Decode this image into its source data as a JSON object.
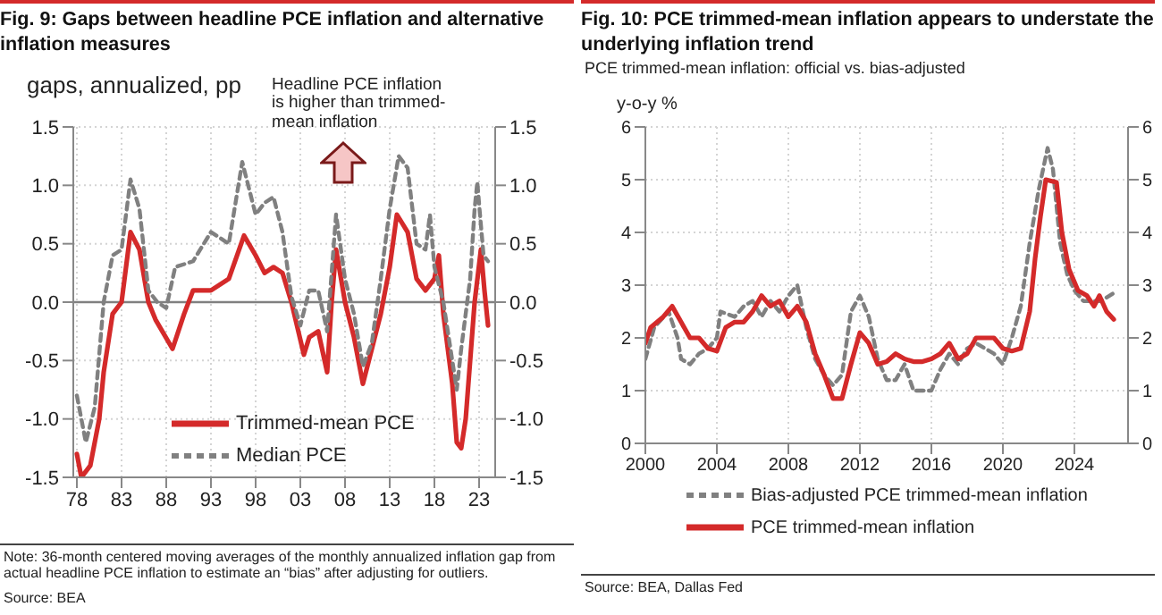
{
  "chart_data": [
    {
      "type": "line",
      "title": "Fig. 9: Gaps between headline PCE inflation and alternative inflation measures",
      "ylabel": "gaps, annualized, pp",
      "annotations": [
        "Headline PCE inflation is higher than trimmed-mean inflation",
        "Note: 36-month centered moving averages of the monthly annualized inflation gap from actual headline PCE inflation to estimate an “bias” after adjusting for outliers.",
        "Source: BEA"
      ],
      "xlim": [
        1977.6,
        2024.8
      ],
      "xticks": [
        {
          "value": 1978,
          "label": "78"
        },
        {
          "value": 1983,
          "label": "83"
        },
        {
          "value": 1988,
          "label": "88"
        },
        {
          "value": 1993,
          "label": "93"
        },
        {
          "value": 1998,
          "label": "98"
        },
        {
          "value": 2003,
          "label": "03"
        },
        {
          "value": 2008,
          "label": "08"
        },
        {
          "value": 2013,
          "label": "13"
        },
        {
          "value": 2018,
          "label": "18"
        },
        {
          "value": 2023,
          "label": "23"
        }
      ],
      "ylim": [
        -1.5,
        1.5
      ],
      "yticks": [
        {
          "value": -1.5,
          "label": "-1.5"
        },
        {
          "value": -1,
          "label": "-1.0"
        },
        {
          "value": -0.5,
          "label": "-0.5"
        },
        {
          "value": 0,
          "label": "0.0"
        },
        {
          "value": 0.5,
          "label": "0.5"
        },
        {
          "value": 1,
          "label": "1.0"
        },
        {
          "value": 1.5,
          "label": "1.5"
        }
      ],
      "y2lim": [
        -1.5,
        1.5
      ],
      "y2ticks": [
        {
          "value": -1.5,
          "label": "-1.5"
        },
        {
          "value": -1,
          "label": "-1.0"
        },
        {
          "value": -0.5,
          "label": "-0.5"
        },
        {
          "value": 0,
          "label": "0.0"
        },
        {
          "value": 0.5,
          "label": "0.5"
        },
        {
          "value": 1,
          "label": "1.0"
        },
        {
          "value": 1.5,
          "label": "1.5"
        }
      ],
      "ref_lines": [
        {
          "axis": "y",
          "value": 0,
          "color": "#808080"
        }
      ],
      "grid": true,
      "legend": "bottom left",
      "series": [
        {
          "name": "Trimmed-mean PCE",
          "color": "#d42a2a",
          "line_style": "solid",
          "x": [
            1978,
            1978.5,
            1979.5,
            1980.5,
            1981,
            1982,
            1983,
            1984,
            1985,
            1986,
            1986.8,
            1988.7,
            1990,
            1991,
            1993,
            1995,
            1996.7,
            1998,
            1999,
            2000,
            2001,
            2002,
            2003.4,
            2004,
            2005,
            2006,
            2006.5,
            2007,
            2008,
            2009,
            2010,
            2011,
            2012,
            2013,
            2013.8,
            2015,
            2016,
            2017,
            2018,
            2018.5,
            2019,
            2020,
            2020.5,
            2021,
            2021.5,
            2022,
            2022.5,
            2023.2,
            2023.6,
            2024
          ],
          "values": [
            -1.3,
            -1.5,
            -1.4,
            -1.0,
            -0.6,
            -0.1,
            0.0,
            0.6,
            0.45,
            0.0,
            -0.15,
            -0.4,
            -0.1,
            0.1,
            0.1,
            0.2,
            0.57,
            0.4,
            0.25,
            0.3,
            0.25,
            0.0,
            -0.45,
            -0.3,
            -0.25,
            -0.6,
            0.0,
            0.45,
            0.0,
            -0.3,
            -0.7,
            -0.4,
            -0.1,
            0.3,
            0.75,
            0.6,
            0.2,
            0.1,
            0.2,
            0.4,
            -0.1,
            -0.7,
            -1.2,
            -1.25,
            -1.0,
            -0.5,
            0.0,
            0.45,
            0.1,
            -0.2
          ]
        },
        {
          "name": "Median PCE",
          "color": "#808080",
          "line_style": "dashed",
          "x": [
            1978,
            1979,
            1980,
            1981,
            1982,
            1983,
            1984,
            1985,
            1986,
            1987,
            1988,
            1989,
            1991,
            1993,
            1995,
            1996.5,
            1998,
            1999,
            2000,
            2001,
            2002,
            2003,
            2004,
            2005,
            2006,
            2007,
            2008,
            2009,
            2010,
            2011,
            2012,
            2013,
            2014,
            2015,
            2016,
            2017,
            2017.5,
            2018,
            2019,
            2020,
            2020.5,
            2021,
            2022,
            2022.5,
            2022.8,
            2023.1,
            2023.5,
            2024
          ],
          "values": [
            -0.8,
            -1.2,
            -0.9,
            0.0,
            0.4,
            0.45,
            1.05,
            0.8,
            0.1,
            0.0,
            -0.05,
            0.3,
            0.35,
            0.6,
            0.5,
            1.2,
            0.75,
            0.85,
            0.9,
            0.6,
            0.05,
            -0.2,
            0.1,
            0.1,
            -0.25,
            0.75,
            0.2,
            -0.1,
            -0.55,
            -0.35,
            0.2,
            0.8,
            1.25,
            1.15,
            0.5,
            0.45,
            0.75,
            0.3,
            0.0,
            -0.5,
            -0.75,
            -0.4,
            0.2,
            0.8,
            1.03,
            0.75,
            0.4,
            0.35
          ]
        }
      ]
    },
    {
      "type": "line",
      "title": "Fig. 10: PCE trimmed-mean inflation appears to understate the underlying inflation trend",
      "subtitle": "PCE trimmed-mean inflation: official vs. bias-adjusted",
      "ylabel": "y-o-y %",
      "annotations": [
        "Source: BEA, Dallas Fed"
      ],
      "xlim": [
        2000,
        2027
      ],
      "xticks": [
        2000,
        2004,
        2008,
        2012,
        2016,
        2020,
        2024
      ],
      "ylim": [
        0,
        6
      ],
      "yticks": [
        0,
        1,
        2,
        3,
        4,
        5,
        6
      ],
      "y2lim": [
        0,
        6
      ],
      "y2ticks": [
        0,
        1,
        2,
        3,
        4,
        5,
        6
      ],
      "grid": true,
      "legend": "bottom",
      "series": [
        {
          "name": "Bias-adjusted PCE trimmed-mean inflation",
          "color": "#808080",
          "line_style": "dashed",
          "x": [
            2000,
            2000.5,
            2001.3,
            2001.8,
            2002,
            2002.5,
            2003,
            2003.5,
            2004,
            2004.2,
            2005,
            2005.5,
            2006,
            2006.5,
            2007,
            2007.5,
            2008,
            2008.5,
            2009,
            2009.5,
            2010,
            2010.5,
            2011,
            2011.5,
            2012,
            2012.5,
            2013,
            2013.5,
            2014,
            2014.5,
            2015,
            2015.5,
            2016,
            2016.5,
            2017,
            2017.5,
            2018,
            2018.5,
            2019,
            2019.5,
            2020,
            2020.5,
            2021,
            2021.5,
            2022,
            2022.5,
            2022.8,
            2023.2,
            2023.6,
            2024,
            2024.5,
            2025,
            2025.5,
            2026.2
          ],
          "values": [
            1.6,
            2.2,
            2.5,
            2.0,
            1.6,
            1.5,
            1.7,
            1.8,
            2.0,
            2.5,
            2.4,
            2.6,
            2.7,
            2.4,
            2.7,
            2.5,
            2.8,
            3.0,
            2.2,
            1.6,
            1.3,
            1.1,
            1.3,
            2.5,
            2.8,
            2.4,
            1.6,
            1.2,
            1.2,
            1.5,
            1.0,
            1.0,
            1.0,
            1.4,
            1.7,
            1.5,
            1.8,
            1.9,
            1.8,
            1.7,
            1.5,
            2.0,
            2.6,
            3.8,
            4.8,
            5.6,
            5.2,
            3.8,
            3.2,
            2.9,
            2.7,
            2.7,
            2.7,
            2.85
          ]
        },
        {
          "name": "PCE trimmed-mean inflation",
          "color": "#d42a2a",
          "line_style": "solid",
          "x": [
            2000,
            2000.3,
            2001,
            2001.5,
            2002,
            2002.5,
            2003,
            2003.5,
            2004,
            2004.5,
            2005,
            2005.5,
            2006,
            2006.5,
            2007,
            2007.5,
            2008,
            2008.5,
            2009,
            2009.5,
            2010,
            2010.5,
            2011,
            2011.5,
            2012,
            2012.5,
            2013,
            2013.5,
            2014,
            2014.5,
            2015,
            2015.5,
            2016,
            2016.5,
            2017,
            2017.5,
            2018,
            2018.5,
            2019,
            2019.5,
            2020,
            2020.5,
            2021,
            2021.5,
            2021.8,
            2022.1,
            2022.4,
            2023,
            2023.3,
            2023.7,
            2024.2,
            2024.7,
            2025.1,
            2025.4,
            2025.8,
            2026.2
          ],
          "values": [
            1.9,
            2.2,
            2.4,
            2.6,
            2.3,
            2.0,
            2.0,
            1.8,
            1.75,
            2.2,
            2.3,
            2.3,
            2.5,
            2.8,
            2.6,
            2.7,
            2.4,
            2.6,
            2.3,
            1.7,
            1.3,
            0.85,
            0.85,
            1.5,
            2.1,
            1.9,
            1.5,
            1.55,
            1.7,
            1.6,
            1.55,
            1.55,
            1.6,
            1.7,
            1.9,
            1.6,
            1.7,
            2.0,
            2.0,
            2.0,
            1.8,
            1.75,
            1.8,
            2.5,
            3.5,
            4.3,
            5.0,
            4.95,
            4.0,
            3.3,
            2.9,
            2.8,
            2.6,
            2.8,
            2.5,
            2.35
          ]
        }
      ]
    }
  ]
}
